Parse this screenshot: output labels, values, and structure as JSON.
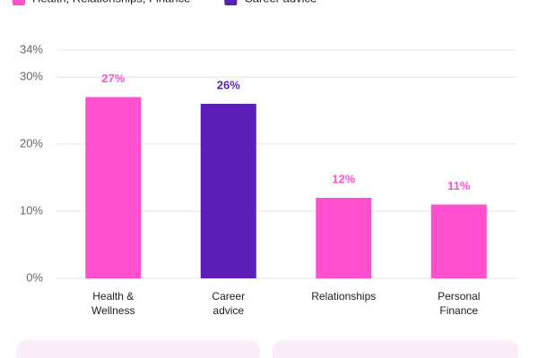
{
  "chart_data": {
    "type": "bar",
    "legend": [
      {
        "label": "Health, Relationships, Finance",
        "color": "#ff4fce"
      },
      {
        "label": "Career advice",
        "color": "#5b1fb8"
      }
    ],
    "categories": [
      "Health &\nWellness",
      "Career\nadvice",
      "Relationships",
      "Personal\nFinance"
    ],
    "values": [
      27,
      26,
      12,
      11
    ],
    "value_labels": [
      "27%",
      "26%",
      "12%",
      "11%"
    ],
    "colors": [
      "#ff4fce",
      "#5b1fb8",
      "#ff4fce",
      "#ff4fce"
    ],
    "ylim": [
      0,
      34
    ],
    "yticks": [
      {
        "value": 0,
        "label": "0%"
      },
      {
        "value": 10,
        "label": "10%"
      },
      {
        "value": 20,
        "label": "20%"
      },
      {
        "value": 30,
        "label": "30%"
      },
      {
        "value": 34,
        "label": "34%"
      }
    ],
    "grid": true
  }
}
